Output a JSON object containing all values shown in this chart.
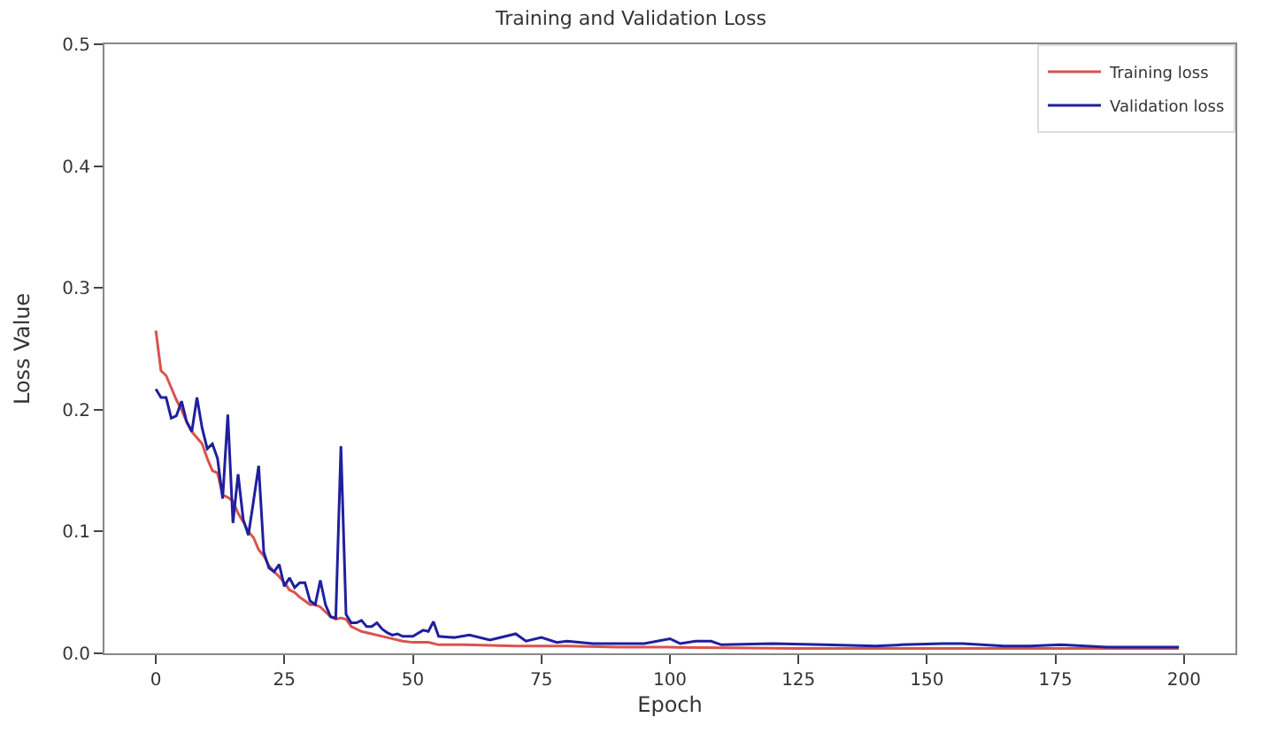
{
  "chart_data": {
    "type": "line",
    "title": "Training and Validation Loss",
    "xlabel": "Epoch",
    "ylabel": "Loss Value",
    "xlim": [
      -10,
      210
    ],
    "xticks": [
      0,
      25,
      50,
      75,
      100,
      125,
      150,
      175,
      200
    ],
    "ylim": [
      0,
      0.5
    ],
    "yticks": [
      {
        "value": 0,
        "label": "0.0"
      },
      0.1,
      0.2,
      0.3,
      0.4,
      0.5
    ],
    "grid": false,
    "legend": "top right",
    "series": [
      {
        "name": "Training loss",
        "color": "#d9534f",
        "x": [
          0,
          1,
          2,
          3,
          4,
          5,
          6,
          7,
          8,
          9,
          10,
          11,
          12,
          13,
          14,
          15,
          16,
          17,
          18,
          19,
          20,
          21,
          22,
          23,
          24,
          25,
          26,
          27,
          28,
          29,
          30,
          31,
          32,
          33,
          34,
          35,
          36,
          37,
          38,
          39,
          40,
          42,
          45,
          48,
          50,
          53,
          55,
          60,
          70,
          80,
          90,
          100,
          125,
          150,
          175,
          199
        ],
        "values": [
          0.265,
          0.232,
          0.228,
          0.218,
          0.208,
          0.2,
          0.19,
          0.182,
          0.177,
          0.172,
          0.16,
          0.15,
          0.148,
          0.13,
          0.128,
          0.125,
          0.115,
          0.108,
          0.1,
          0.095,
          0.085,
          0.08,
          0.072,
          0.067,
          0.063,
          0.058,
          0.052,
          0.05,
          0.046,
          0.043,
          0.04,
          0.04,
          0.038,
          0.034,
          0.03,
          0.028,
          0.029,
          0.028,
          0.022,
          0.02,
          0.018,
          0.016,
          0.013,
          0.01,
          0.009,
          0.009,
          0.007,
          0.007,
          0.006,
          0.006,
          0.005,
          0.005,
          0.004,
          0.004,
          0.004,
          0.004
        ]
      },
      {
        "name": "Validation loss",
        "color": "#1f1f9f",
        "x": [
          0,
          1,
          2,
          3,
          4,
          5,
          6,
          7,
          8,
          9,
          10,
          11,
          12,
          13,
          14,
          15,
          16,
          17,
          18,
          19,
          20,
          21,
          22,
          23,
          24,
          25,
          26,
          27,
          28,
          29,
          30,
          31,
          32,
          33,
          34,
          35,
          36,
          37,
          38,
          39,
          40,
          41,
          42,
          43,
          44,
          45,
          46,
          47,
          48,
          50,
          52,
          53,
          54,
          55,
          58,
          61,
          65,
          70,
          72,
          75,
          78,
          80,
          85,
          90,
          95,
          100,
          102,
          105,
          108,
          110,
          120,
          130,
          140,
          145,
          153,
          157,
          165,
          170,
          176,
          185,
          190,
          199
        ],
        "values": [
          0.217,
          0.21,
          0.21,
          0.193,
          0.195,
          0.207,
          0.19,
          0.182,
          0.21,
          0.185,
          0.168,
          0.172,
          0.16,
          0.127,
          0.196,
          0.107,
          0.147,
          0.11,
          0.097,
          0.125,
          0.154,
          0.083,
          0.07,
          0.067,
          0.073,
          0.055,
          0.062,
          0.054,
          0.058,
          0.058,
          0.043,
          0.04,
          0.06,
          0.04,
          0.03,
          0.029,
          0.17,
          0.032,
          0.025,
          0.025,
          0.027,
          0.022,
          0.022,
          0.025,
          0.02,
          0.017,
          0.015,
          0.016,
          0.014,
          0.014,
          0.019,
          0.018,
          0.026,
          0.014,
          0.013,
          0.015,
          0.011,
          0.016,
          0.01,
          0.013,
          0.009,
          0.01,
          0.008,
          0.008,
          0.008,
          0.012,
          0.008,
          0.01,
          0.01,
          0.007,
          0.008,
          0.007,
          0.006,
          0.007,
          0.008,
          0.008,
          0.006,
          0.006,
          0.007,
          0.005,
          0.005,
          0.005
        ]
      }
    ]
  }
}
